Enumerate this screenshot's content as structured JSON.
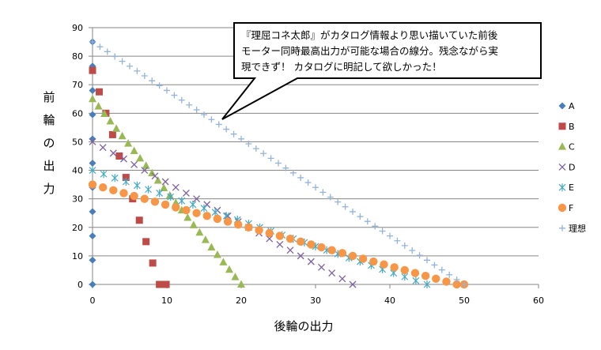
{
  "chart_data": {
    "type": "scatter",
    "xlabel": "後輪の出力",
    "ylabel": "前輪の出力",
    "xlim": [
      0,
      60
    ],
    "ylim": [
      0,
      90
    ],
    "xticks": [
      0,
      10,
      20,
      30,
      40,
      50,
      60
    ],
    "yticks": [
      0,
      10,
      20,
      30,
      40,
      50,
      60,
      70,
      80,
      90
    ],
    "grid": "horizontal",
    "legend_position": "right",
    "annotation": {
      "lines": [
        "『理屈コネ太郎』がカタログ情報より思い描いていた前後",
        "モーター同時最高出力が可能な場合の線分。残念ながら実",
        "現できず！ カタログに明記して欲しかった！"
      ],
      "points_to_series": "理想"
    },
    "series": [
      {
        "name": "A",
        "marker": "diamond",
        "color": "#4a7ebb",
        "x": [
          0,
          0,
          0,
          0,
          0,
          0,
          0,
          0,
          0,
          0,
          0
        ],
        "y": [
          0,
          8.5,
          17,
          25.5,
          34,
          42.5,
          51,
          59.5,
          68,
          76.5,
          85
        ]
      },
      {
        "name": "B",
        "marker": "square",
        "color": "#be4b48",
        "x": [
          0,
          0.9,
          1.8,
          2.7,
          3.6,
          4.5,
          5.4,
          6.3,
          7.2,
          8.1,
          9,
          9.9
        ],
        "y": [
          75,
          67.5,
          60,
          52.5,
          45,
          37.5,
          30,
          22.5,
          15,
          7.5,
          0,
          0
        ]
      },
      {
        "name": "C",
        "marker": "triangle",
        "color": "#98b954",
        "x": [
          0,
          0.8,
          1.6,
          2.4,
          3.2,
          4,
          4.8,
          5.6,
          6.4,
          7.2,
          8,
          8.8,
          9.6,
          10.4,
          11.2,
          12,
          12.8,
          13.6,
          14.4,
          15.2,
          16,
          16.8,
          17.6,
          18.4,
          19.2,
          20
        ],
        "y": [
          65,
          62.4,
          59.8,
          57.2,
          54.6,
          52,
          49.4,
          46.8,
          44.2,
          41.6,
          39,
          36.4,
          33.8,
          31.2,
          28.6,
          26,
          23.4,
          20.8,
          18.2,
          15.6,
          13,
          10.4,
          7.8,
          5.2,
          2.6,
          0
        ]
      },
      {
        "name": "D",
        "marker": "x",
        "color": "#7d60a0",
        "x": [
          0,
          1.4,
          2.8,
          4.2,
          5.6,
          7,
          8.4,
          9.8,
          11.2,
          12.6,
          14,
          15.4,
          16.8,
          18.2,
          19.6,
          21,
          22.4,
          23.8,
          25.2,
          26.6,
          28,
          29.4,
          30.8,
          32.2,
          33.6,
          35
        ],
        "y": [
          50,
          48,
          46,
          44,
          42,
          40,
          38,
          36,
          34,
          32,
          30,
          28,
          26,
          24,
          22,
          20,
          18,
          16,
          14,
          12,
          10,
          8,
          6,
          4,
          2,
          0
        ]
      },
      {
        "name": "E",
        "marker": "asterisk",
        "color": "#46aac4",
        "x": [
          0,
          1.5,
          3,
          4.5,
          6,
          7.5,
          9,
          10.5,
          12,
          13.5,
          15,
          16.5,
          18,
          19.5,
          21,
          22.5,
          24,
          25.5,
          27,
          28.5,
          30,
          31.5,
          33,
          34.5,
          36,
          37.5,
          39,
          40.5,
          42,
          43.5,
          45
        ],
        "y": [
          40,
          38.7,
          37.3,
          36,
          34.7,
          33.3,
          32,
          30.7,
          29.3,
          28,
          26.7,
          25.3,
          24,
          22.7,
          21.3,
          20,
          18.7,
          17.3,
          16,
          14.7,
          13.3,
          12,
          10.7,
          9.3,
          8,
          6.7,
          5.3,
          4,
          2.7,
          1.3,
          0
        ]
      },
      {
        "name": "F",
        "marker": "circle",
        "color": "#f79646",
        "x": [
          0,
          1.4,
          2.8,
          4.2,
          5.6,
          7,
          8.4,
          9.8,
          11.2,
          12.6,
          14,
          15.4,
          16.8,
          18.2,
          19.6,
          21,
          22.4,
          23.8,
          25.2,
          26.6,
          28,
          29.4,
          30.8,
          32.2,
          33.6,
          35,
          36.4,
          37.8,
          39.2,
          40.6,
          42,
          43.4,
          44.8,
          46.2,
          47.6,
          49,
          50
        ],
        "y": [
          35,
          34,
          33,
          32,
          31,
          30,
          29,
          28,
          27,
          26,
          25,
          24,
          23,
          22,
          21,
          20,
          19,
          18,
          17,
          16,
          15,
          14,
          13,
          12,
          11,
          10,
          9,
          8,
          7,
          6,
          5,
          4,
          3,
          2,
          1,
          0,
          0
        ]
      },
      {
        "name": "理想",
        "marker": "plus",
        "color": "#95b3d7",
        "x": [
          0,
          1,
          2,
          3,
          4,
          5,
          6,
          7,
          8,
          9,
          10,
          11,
          12,
          13,
          14,
          15,
          16,
          17,
          18,
          19,
          20,
          21,
          22,
          23,
          24,
          25,
          26,
          27,
          28,
          29,
          30,
          31,
          32,
          33,
          34,
          35,
          36,
          37,
          38,
          39,
          40,
          41,
          42,
          43,
          44,
          45,
          46,
          47,
          48,
          49,
          50
        ],
        "y": [
          85,
          83.3,
          81.6,
          79.9,
          78.2,
          76.5,
          74.8,
          73.1,
          71.4,
          69.7,
          68,
          66.3,
          64.6,
          62.9,
          61.2,
          59.5,
          57.8,
          56.1,
          54.4,
          52.7,
          51,
          49.3,
          47.6,
          45.9,
          44.2,
          42.5,
          40.8,
          39.1,
          37.4,
          35.7,
          34,
          32.3,
          30.6,
          28.9,
          27.2,
          25.5,
          23.8,
          22.1,
          20.4,
          18.7,
          17,
          15.3,
          13.6,
          11.9,
          10.2,
          8.5,
          6.8,
          5.1,
          3.4,
          1.7,
          0
        ]
      }
    ]
  }
}
